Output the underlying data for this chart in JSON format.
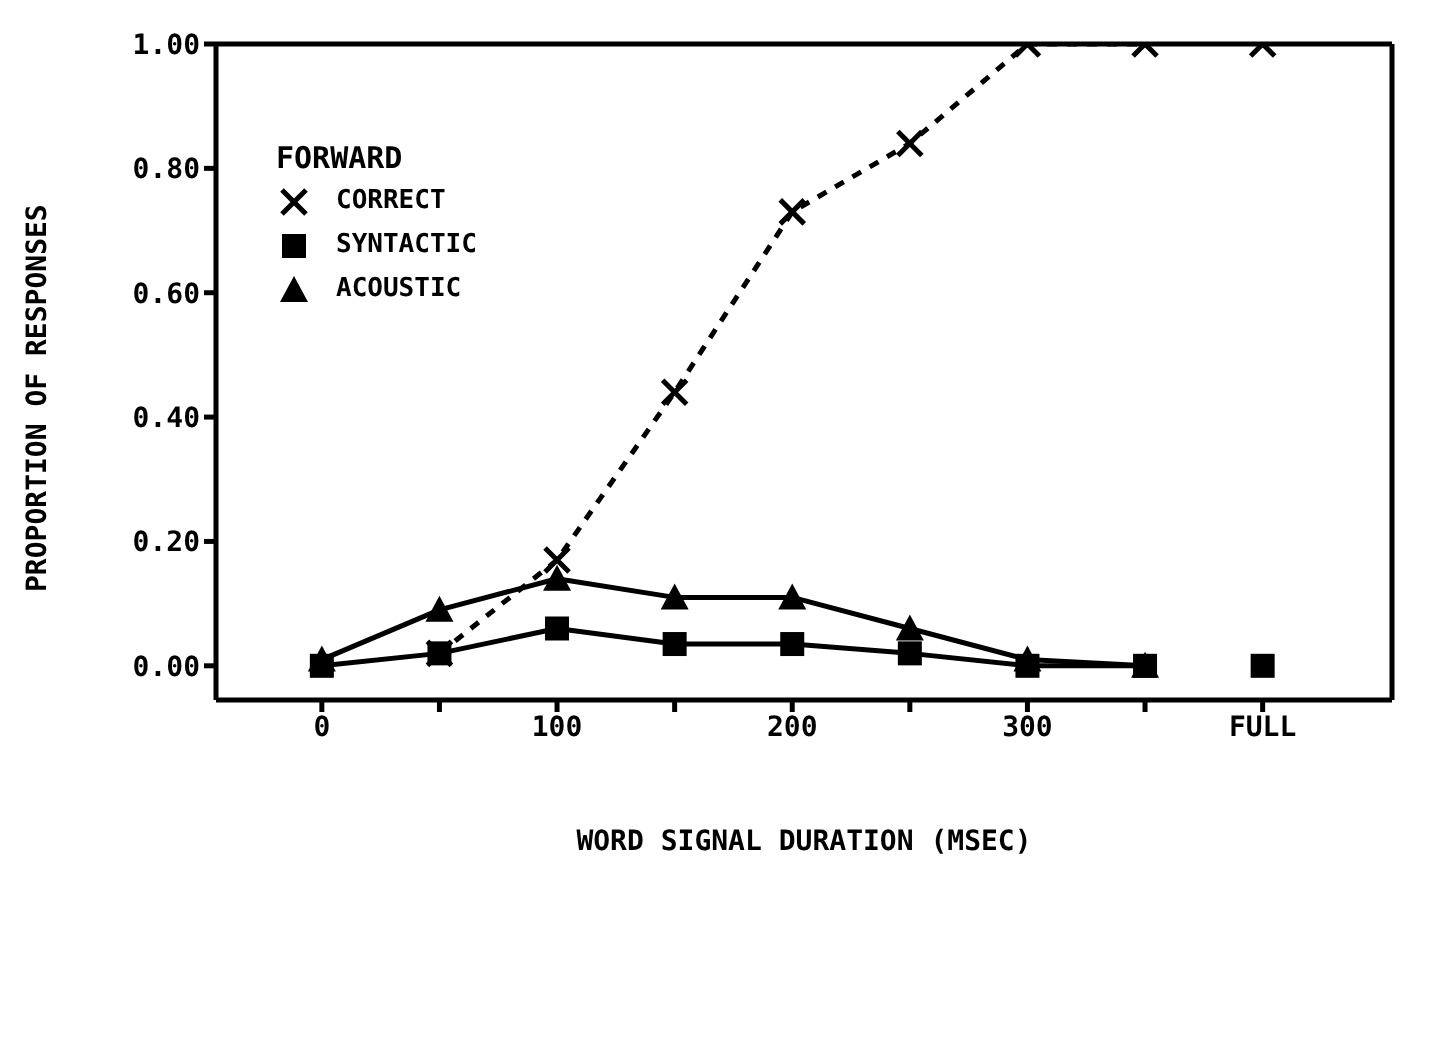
{
  "chart_data": {
    "type": "line",
    "xlabel": "WORD SIGNAL DURATION (MSEC)",
    "ylabel": "PROPORTION OF RESPONSES",
    "legend_title": "FORWARD",
    "x": [
      0,
      50,
      100,
      150,
      200,
      250,
      300,
      350
    ],
    "xlim": [
      -45,
      455
    ],
    "xticks": [
      0,
      {
        "value": 50,
        "label": null
      },
      100,
      {
        "value": 150,
        "label": null
      },
      200,
      {
        "value": 250,
        "label": null
      },
      300,
      {
        "value": 350,
        "label": null
      },
      {
        "value": 400,
        "label": "FULL"
      }
    ],
    "ylim": [
      -0.055,
      1.0
    ],
    "yticks": [
      {
        "value": 0,
        "label": "0.00"
      },
      {
        "value": 0.2,
        "label": "0.20"
      },
      {
        "value": 0.4,
        "label": "0.40"
      },
      {
        "value": 0.6,
        "label": "0.60"
      },
      {
        "value": 0.8,
        "label": "0.80"
      },
      {
        "value": 1.0,
        "label": "1.00"
      }
    ],
    "legend": "top left",
    "grid": false,
    "series": [
      {
        "name": "CORRECT",
        "color": "#000000",
        "marker": "cross",
        "line_style": "dashed",
        "values": [
          null,
          0.02,
          0.17,
          0.44,
          0.73,
          0.84,
          1.0,
          1.0
        ]
      },
      {
        "name": "SYNTACTIC",
        "color": "#000000",
        "marker": "square",
        "line_style": "solid",
        "values": [
          0.0,
          0.02,
          0.06,
          0.035,
          0.035,
          0.02,
          0.0,
          0.0
        ]
      },
      {
        "name": "ACOUSTIC",
        "color": "#000000",
        "marker": "triangle",
        "line_style": "solid",
        "values": [
          0.01,
          0.09,
          0.14,
          0.11,
          0.11,
          0.06,
          0.01,
          0.0
        ]
      },
      {
        "type": "scatter",
        "color": "#000000",
        "marker": "cross",
        "x": [
          400
        ],
        "values": [
          1.0
        ]
      },
      {
        "type": "scatter",
        "color": "#000000",
        "marker": "square",
        "x": [
          400
        ],
        "values": [
          0.0
        ]
      }
    ]
  }
}
